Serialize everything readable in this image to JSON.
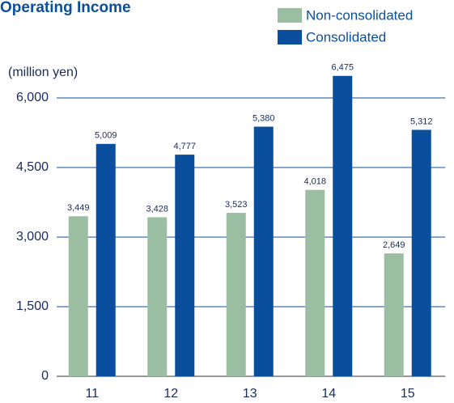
{
  "chart_data": {
    "type": "bar",
    "title": "Operating Income",
    "y_label": "(million yen)",
    "categories": [
      "11",
      "12",
      "13",
      "14",
      "15"
    ],
    "series": [
      {
        "name": "Non-consolidated",
        "color": "#9bbea3",
        "values": [
          3449,
          3428,
          3523,
          4018,
          2649
        ],
        "value_labels": [
          "3,449",
          "3,428",
          "3,523",
          "4,018",
          "2,649"
        ]
      },
      {
        "name": "Consolidated",
        "color": "#0a4f9e",
        "values": [
          5009,
          4777,
          5380,
          6475,
          5312
        ],
        "value_labels": [
          "5,009",
          "4,777",
          "5,380",
          "6,475",
          "5,312"
        ]
      }
    ],
    "ylim": [
      0,
      6000
    ],
    "yticks": [
      0,
      {
        "value": 1500,
        "label": "1,500"
      },
      {
        "value": 3000,
        "label": "3,000"
      },
      {
        "value": 4500,
        "label": "4,500"
      },
      {
        "value": 6000,
        "label": "6,000"
      }
    ],
    "grid": true
  }
}
